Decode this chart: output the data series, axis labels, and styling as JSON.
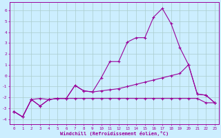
{
  "xlabel": "Windchill (Refroidissement éolien,°C)",
  "bg_color": "#cceeff",
  "grid_color": "#aacccc",
  "line_color": "#990099",
  "xlim": [
    -0.5,
    23.5
  ],
  "ylim": [
    -4.5,
    6.8
  ],
  "xticks": [
    0,
    1,
    2,
    3,
    4,
    5,
    6,
    7,
    8,
    9,
    10,
    11,
    12,
    13,
    14,
    15,
    16,
    17,
    18,
    19,
    20,
    21,
    22,
    23
  ],
  "yticks": [
    -4,
    -3,
    -2,
    -1,
    0,
    1,
    2,
    3,
    4,
    5,
    6
  ],
  "line1_x": [
    0,
    1,
    2,
    3,
    4,
    5,
    6,
    7,
    8,
    9,
    10,
    11,
    12,
    13,
    14,
    15,
    16,
    17,
    18,
    19,
    20,
    21,
    22,
    23
  ],
  "line1_y": [
    -3.3,
    -3.8,
    -2.2,
    -2.8,
    -2.2,
    -2.1,
    -2.1,
    -0.9,
    -1.4,
    -1.5,
    -0.2,
    1.3,
    1.3,
    3.1,
    3.5,
    3.5,
    5.4,
    6.2,
    4.8,
    2.6,
    1.0,
    -1.7,
    -1.8,
    -2.5
  ],
  "line2_x": [
    0,
    1,
    2,
    3,
    4,
    5,
    6,
    7,
    8,
    9,
    10,
    11,
    12,
    13,
    14,
    15,
    16,
    17,
    18,
    19,
    20,
    21,
    22,
    23
  ],
  "line2_y": [
    -3.3,
    -3.8,
    -2.2,
    -2.8,
    -2.2,
    -2.1,
    -2.1,
    -0.9,
    -1.4,
    -1.5,
    -1.4,
    -1.3,
    -1.2,
    -1.0,
    -0.8,
    -0.6,
    -0.4,
    -0.2,
    0.0,
    0.2,
    1.0,
    -1.7,
    -1.8,
    -2.5
  ],
  "line3_x": [
    0,
    1,
    2,
    3,
    4,
    5,
    6,
    7,
    8,
    9,
    10,
    11,
    12,
    13,
    14,
    15,
    16,
    17,
    18,
    19,
    20,
    21,
    22,
    23
  ],
  "line3_y": [
    -3.3,
    -3.8,
    -2.2,
    -2.1,
    -2.2,
    -2.1,
    -2.1,
    -2.1,
    -2.1,
    -2.1,
    -2.1,
    -2.1,
    -2.1,
    -2.1,
    -2.1,
    -2.1,
    -2.1,
    -2.1,
    -2.1,
    -2.1,
    -2.1,
    -2.1,
    -2.5,
    -2.5
  ]
}
